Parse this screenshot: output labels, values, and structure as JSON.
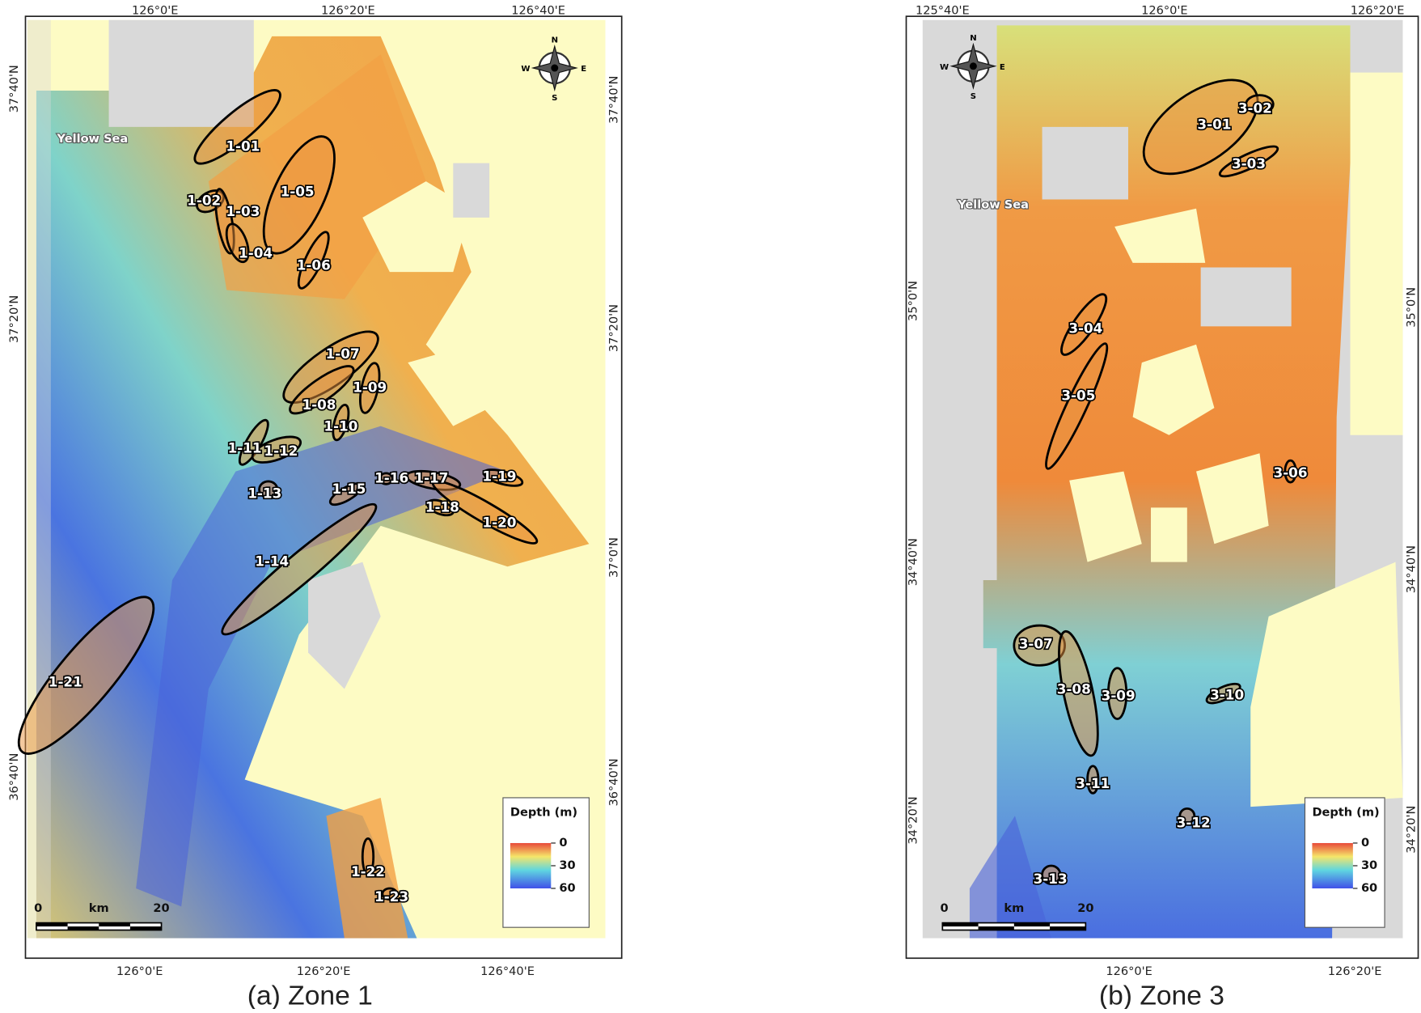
{
  "panels": [
    {
      "caption": "(a) Zone 1",
      "top_labels": [
        "126°0'E",
        "126°20'E",
        "126°40'E"
      ],
      "bottom_labels": [
        "126°0'E",
        "126°20'E",
        "126°40'E"
      ],
      "left_labels": [
        "37°40'N",
        "37°20'N",
        "36°40'N"
      ],
      "right_labels": [
        "37°40'N",
        "37°20'N",
        "37°0'N",
        "36°40'N"
      ],
      "sea_label": "Yellow Sea",
      "zones": [
        "1-01",
        "1-02",
        "1-03",
        "1-04",
        "1-05",
        "1-06",
        "1-07",
        "1-08",
        "1-09",
        "1-10",
        "1-11",
        "1-12",
        "1-13",
        "1-14",
        "1-15",
        "1-16",
        "1-17",
        "1-18",
        "1-19",
        "1-20",
        "1-21",
        "1-22",
        "1-23"
      ],
      "compass": {
        "n": "N",
        "e": "E",
        "s": "S",
        "w": "W"
      },
      "legend": {
        "title": "Depth (m)",
        "ticks": [
          0,
          30,
          60
        ]
      },
      "scale": {
        "start": 0,
        "end": 20,
        "unit": "km"
      }
    },
    {
      "caption": "(b) Zone 3",
      "top_labels": [
        "125°40'E",
        "126°0'E",
        "126°20'E"
      ],
      "bottom_labels": [
        "126°0'E",
        "126°20'E"
      ],
      "left_labels": [
        "35°0'N",
        "34°40'N",
        "34°20'N"
      ],
      "right_labels": [
        "35°0'N",
        "34°40'N",
        "34°20'N"
      ],
      "sea_label": "Yellow Sea",
      "zones": [
        "3-01",
        "3-02",
        "3-03",
        "3-04",
        "3-05",
        "3-06",
        "3-07",
        "3-08",
        "3-09",
        "3-10",
        "3-11",
        "3-12",
        "3-13"
      ],
      "compass": {
        "n": "N",
        "e": "E",
        "s": "S",
        "w": "W"
      },
      "legend": {
        "title": "Depth (m)",
        "ticks": [
          0,
          30,
          60
        ]
      },
      "scale": {
        "start": 0,
        "end": 20,
        "unit": "km"
      }
    }
  ]
}
